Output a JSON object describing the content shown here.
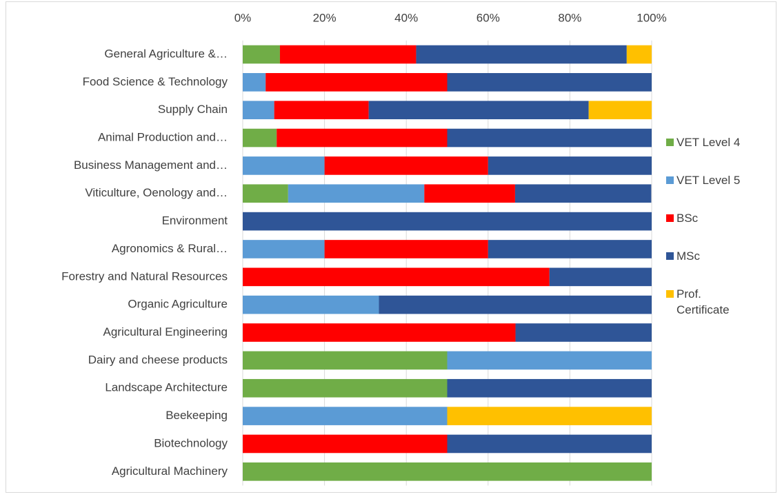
{
  "chart_data": {
    "type": "stacked_barh",
    "categories": [
      "General Agriculture &…",
      "Food Science & Technology",
      "Supply Chain",
      "Animal Production and…",
      "Business Management and…",
      "Viticulture, Oenology and…",
      "Environment",
      "Agronomics & Rural…",
      "Forestry and Natural Resources",
      "Organic Agriculture",
      "Agricultural Engineering",
      "Dairy and cheese products",
      "Landscape Architecture",
      "Beekeeping",
      "Biotechnology",
      "Agricultural Machinery"
    ],
    "series": [
      {
        "name": "VET Level 4",
        "color": "#70ad47",
        "values": [
          9.1,
          0,
          0,
          8.3,
          0,
          11.1,
          0,
          0,
          0,
          0,
          0,
          50,
          50,
          0,
          0,
          100
        ]
      },
      {
        "name": "VET Level 5",
        "color": "#5b9bd5",
        "values": [
          0,
          5.6,
          7.7,
          0,
          20,
          33.3,
          0,
          20,
          0,
          33.3,
          0,
          50,
          0,
          50,
          0,
          0
        ]
      },
      {
        "name": "BSc",
        "color": "#ff0000",
        "values": [
          33.3,
          44.4,
          23.1,
          41.7,
          40,
          22.2,
          0,
          40,
          75,
          0,
          66.7,
          0,
          0,
          0,
          50,
          0
        ]
      },
      {
        "name": "MSc",
        "color": "#2f5597",
        "values": [
          51.5,
          50,
          53.8,
          50,
          40,
          33.3,
          100,
          40,
          25,
          66.7,
          33.3,
          0,
          50,
          0,
          50,
          0
        ]
      },
      {
        "name": "Prof. Certificate",
        "color": "#ffc000",
        "values": [
          6.1,
          0,
          15.4,
          0,
          0,
          0,
          0,
          0,
          0,
          0,
          0,
          0,
          0,
          50,
          0,
          0
        ]
      }
    ],
    "xlim": [
      0,
      100
    ],
    "xticks": [
      {
        "value": 0,
        "label": "0%"
      },
      {
        "value": 20,
        "label": "20%"
      },
      {
        "value": 40,
        "label": "40%"
      },
      {
        "value": 60,
        "label": "60%"
      },
      {
        "value": 80,
        "label": "80%"
      },
      {
        "value": 100,
        "label": "100%"
      }
    ],
    "grid": true,
    "legend": "right"
  }
}
